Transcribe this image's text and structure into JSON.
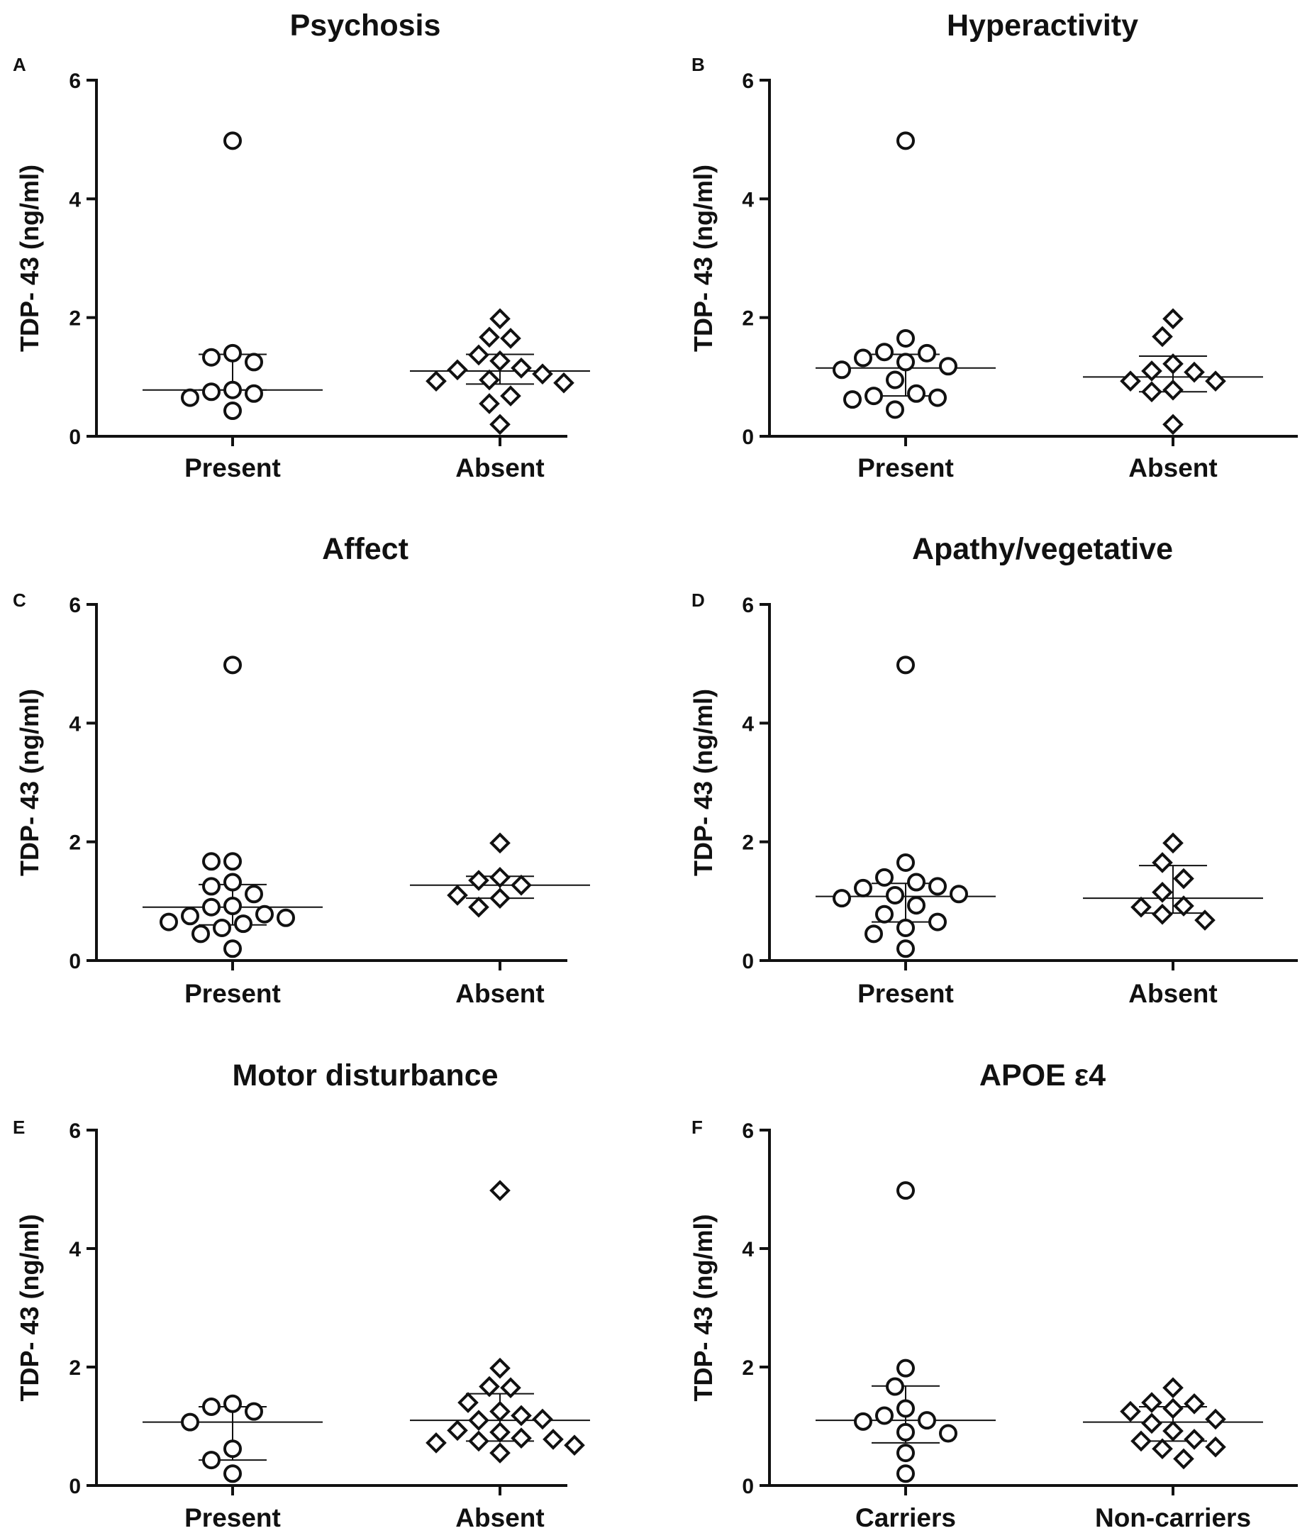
{
  "chart_data": [
    {
      "type": "scatter",
      "panel": "A",
      "title": "Psychosis",
      "ylabel": "TDP- 43 (ng/ml)",
      "ylim": [
        0,
        6
      ],
      "yticks": [
        "0",
        "2",
        "4",
        "6"
      ],
      "categories": [
        "Present",
        "Absent"
      ],
      "groups": [
        {
          "name": "Present",
          "marker": "circle",
          "median": 0.78,
          "iqr": [
            0.78,
            1.38
          ],
          "points": [
            4.98,
            1.4,
            1.33,
            1.25,
            0.78,
            0.75,
            0.72,
            0.65,
            0.43
          ]
        },
        {
          "name": "Absent",
          "marker": "diamond",
          "median": 1.1,
          "iqr": [
            0.88,
            1.38
          ],
          "points": [
            1.98,
            1.67,
            1.65,
            1.37,
            1.27,
            1.15,
            1.12,
            1.05,
            0.95,
            0.93,
            0.9,
            0.68,
            0.55,
            0.2
          ]
        }
      ]
    },
    {
      "type": "scatter",
      "panel": "B",
      "title": "Hyperactivity",
      "ylabel": "TDP- 43 (ng/ml)",
      "ylim": [
        0,
        6
      ],
      "yticks": [
        "0",
        "2",
        "4",
        "6"
      ],
      "categories": [
        "Present",
        "Absent"
      ],
      "groups": [
        {
          "name": "Present",
          "marker": "circle",
          "median": 1.15,
          "iqr": [
            0.68,
            1.38
          ],
          "points": [
            4.98,
            1.65,
            1.42,
            1.4,
            1.32,
            1.25,
            1.18,
            1.12,
            0.95,
            0.72,
            0.68,
            0.65,
            0.62,
            0.45
          ]
        },
        {
          "name": "Absent",
          "marker": "diamond",
          "median": 1.0,
          "iqr": [
            0.75,
            1.35
          ],
          "points": [
            1.98,
            1.68,
            1.22,
            1.1,
            1.08,
            0.93,
            0.93,
            0.78,
            0.75,
            0.2
          ]
        }
      ]
    },
    {
      "type": "scatter",
      "panel": "C",
      "title": "Affect",
      "ylabel": "TDP- 43 (ng/ml)",
      "ylim": [
        0,
        6
      ],
      "yticks": [
        "0",
        "2",
        "4",
        "6"
      ],
      "categories": [
        "Present",
        "Absent"
      ],
      "groups": [
        {
          "name": "Present",
          "marker": "circle",
          "median": 0.9,
          "iqr": [
            0.6,
            1.28
          ],
          "points": [
            4.98,
            1.67,
            1.67,
            1.32,
            1.25,
            1.12,
            0.92,
            0.9,
            0.78,
            0.75,
            0.72,
            0.65,
            0.62,
            0.55,
            0.45,
            0.2
          ]
        },
        {
          "name": "Absent",
          "marker": "diamond",
          "median": 1.27,
          "iqr": [
            1.05,
            1.42
          ],
          "points": [
            1.98,
            1.4,
            1.35,
            1.27,
            1.1,
            1.05,
            0.9
          ]
        }
      ]
    },
    {
      "type": "scatter",
      "panel": "D",
      "title": "Apathy/vegetative",
      "ylabel": "TDP- 43 (ng/ml)",
      "ylim": [
        0,
        6
      ],
      "yticks": [
        "0",
        "2",
        "4",
        "6"
      ],
      "categories": [
        "Present",
        "Absent"
      ],
      "groups": [
        {
          "name": "Present",
          "marker": "circle",
          "median": 1.08,
          "iqr": [
            0.65,
            1.3
          ],
          "points": [
            4.98,
            1.65,
            1.4,
            1.32,
            1.25,
            1.22,
            1.12,
            1.1,
            1.05,
            0.93,
            0.78,
            0.65,
            0.55,
            0.45,
            0.2
          ]
        },
        {
          "name": "Absent",
          "marker": "diamond",
          "median": 1.05,
          "iqr": [
            0.8,
            1.6
          ],
          "points": [
            1.98,
            1.65,
            1.38,
            1.15,
            0.92,
            0.9,
            0.78,
            0.68
          ]
        }
      ]
    },
    {
      "type": "scatter",
      "panel": "E",
      "title": "Motor disturbance",
      "ylabel": "TDP- 43 (ng/ml)",
      "ylim": [
        0,
        6
      ],
      "yticks": [
        "0",
        "2",
        "4",
        "6"
      ],
      "categories": [
        "Present",
        "Absent"
      ],
      "groups": [
        {
          "name": "Present",
          "marker": "circle",
          "median": 1.07,
          "iqr": [
            0.43,
            1.33
          ],
          "points": [
            1.38,
            1.33,
            1.25,
            1.07,
            0.62,
            0.43,
            0.2
          ]
        },
        {
          "name": "Absent",
          "marker": "diamond",
          "median": 1.1,
          "iqr": [
            0.75,
            1.55
          ],
          "points": [
            4.98,
            1.98,
            1.67,
            1.65,
            1.4,
            1.25,
            1.18,
            1.12,
            1.1,
            0.93,
            0.9,
            0.8,
            0.78,
            0.75,
            0.72,
            0.68,
            0.55
          ]
        }
      ]
    },
    {
      "type": "scatter",
      "panel": "F",
      "title": "APOE  ε4",
      "ylabel": "TDP- 43 (ng/ml)",
      "ylim": [
        0,
        6
      ],
      "yticks": [
        "0",
        "2",
        "4",
        "6"
      ],
      "categories": [
        "Carriers",
        "Non-carriers"
      ],
      "groups": [
        {
          "name": "Carriers",
          "marker": "circle",
          "median": 1.1,
          "iqr": [
            0.72,
            1.68
          ],
          "points": [
            4.98,
            1.98,
            1.67,
            1.3,
            1.18,
            1.1,
            1.08,
            0.9,
            0.88,
            0.55,
            0.2
          ]
        },
        {
          "name": "Non-carriers",
          "marker": "diamond",
          "median": 1.07,
          "iqr": [
            0.75,
            1.33
          ],
          "points": [
            1.65,
            1.4,
            1.38,
            1.3,
            1.25,
            1.12,
            1.05,
            0.92,
            0.78,
            0.75,
            0.65,
            0.62,
            0.45
          ]
        }
      ]
    }
  ]
}
